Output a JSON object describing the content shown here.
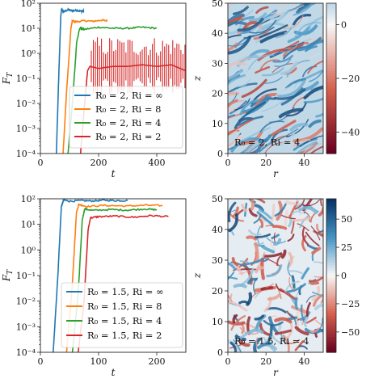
{
  "colors": {
    "blue": "#1f77b4",
    "orange": "#ff7f0e",
    "green": "#2ca02c",
    "red": "#d62728",
    "cmap_neg": "#67001f",
    "cmap_mid": "#f7f7f7",
    "cmap_pos": "#053061"
  },
  "chart_data": [
    {
      "id": "top-left",
      "type": "line",
      "xlabel": "t",
      "ylabel": "F_T",
      "yscale": "log",
      "xlim": [
        0,
        500
      ],
      "ylim": [
        0.0001,
        100
      ],
      "xticks": [
        0,
        200,
        400
      ],
      "xticklabels": [
        "0",
        "200",
        "400"
      ],
      "yticks": [
        0.0001,
        0.001,
        0.01,
        0.1,
        1,
        10,
        100
      ],
      "yticklabels": [
        "10⁻⁴",
        "10⁻³",
        "10⁻²",
        "10⁻¹",
        "10⁰",
        "10¹",
        "10²"
      ],
      "legend_placement": "lower-right",
      "series": [
        {
          "name": "R₀ = 2, Ri = ∞",
          "color": "blue",
          "x": [
            55,
            62,
            70,
            73,
            80,
            95,
            110,
            125,
            140,
            150
          ],
          "y": [
            0.0001,
            0.05,
            30,
            60,
            45,
            55,
            50,
            52,
            48,
            50
          ]
        },
        {
          "name": "R₀ = 2, Ri = 8",
          "color": "orange",
          "x": [
            78,
            90,
            105,
            110,
            120,
            150,
            180,
            210,
            230
          ],
          "y": [
            0.0001,
            0.03,
            10,
            20,
            18,
            20,
            19,
            21,
            20
          ]
        },
        {
          "name": "R₀ = 2, Ri = 4",
          "color": "green",
          "x": [
            95,
            110,
            125,
            135,
            150,
            200,
            250,
            300,
            350,
            400
          ],
          "y": [
            0.0001,
            0.01,
            3,
            10,
            9,
            11,
            10,
            10,
            11,
            10
          ]
        },
        {
          "name": "R₀ = 2, Ri = 2",
          "color": "red",
          "x": [
            138,
            150,
            162,
            170,
            200,
            250,
            300,
            350,
            400,
            450,
            500
          ],
          "y": [
            0.0001,
            0.005,
            0.2,
            0.3,
            0.25,
            0.3,
            0.3,
            0.35,
            0.3,
            0.35,
            0.2
          ]
        }
      ]
    },
    {
      "id": "top-right",
      "type": "heatmap",
      "xlabel": "r",
      "ylabel": "z",
      "xlim": [
        0,
        50
      ],
      "ylim": [
        0,
        50
      ],
      "xticks": [
        0,
        20,
        40
      ],
      "xticklabels": [
        "0",
        "20",
        "40"
      ],
      "yticks": [
        0,
        10,
        20,
        30,
        40,
        50
      ],
      "yticklabels": [
        "0",
        "10",
        "20",
        "30",
        "40",
        "50"
      ],
      "annotation": "R₀ = 2, Ri = 4",
      "colorbar": {
        "min": -48,
        "max": 8,
        "ticks": [
          0,
          -20,
          -40
        ],
        "ticklabels": [
          "0",
          "−20",
          "−40"
        ]
      }
    },
    {
      "id": "bottom-left",
      "type": "line",
      "xlabel": "t",
      "ylabel": "F_T",
      "yscale": "log",
      "xlim": [
        0,
        250
      ],
      "ylim": [
        0.0001,
        100
      ],
      "xticks": [
        0,
        100,
        200
      ],
      "xticklabels": [
        "0",
        "100",
        "200"
      ],
      "yticks": [
        0.0001,
        0.001,
        0.01,
        0.1,
        1,
        10,
        100
      ],
      "yticklabels": [
        "10⁻⁴",
        "10⁻³",
        "10⁻²",
        "10⁻¹",
        "10⁰",
        "10¹",
        "10²"
      ],
      "legend_placement": "lower-right",
      "series": [
        {
          "name": "R₀ = 1.5, Ri = ∞",
          "color": "blue",
          "x": [
            22,
            30,
            36,
            40,
            50,
            70,
            90,
            110,
            130,
            150
          ],
          "y": [
            0.0001,
            0.1,
            50,
            90,
            80,
            85,
            82,
            88,
            84,
            85
          ]
        },
        {
          "name": "R₀ = 1.5, Ri = 8",
          "color": "orange",
          "x": [
            45,
            55,
            62,
            66,
            80,
            110,
            150,
            180,
            210
          ],
          "y": [
            0.0001,
            0.05,
            30,
            60,
            50,
            55,
            52,
            56,
            54
          ]
        },
        {
          "name": "R₀ = 1.5, Ri = 4",
          "color": "green",
          "x": [
            55,
            65,
            72,
            76,
            90,
            120,
            150,
            180,
            200
          ],
          "y": [
            0.0001,
            0.02,
            15,
            40,
            35,
            38,
            36,
            40,
            37
          ]
        },
        {
          "name": "R₀ = 1.5, Ri = 2",
          "color": "red",
          "x": [
            65,
            75,
            82,
            86,
            100,
            130,
            160,
            190,
            220
          ],
          "y": [
            0.0001,
            0.01,
            6,
            18,
            20,
            21,
            19,
            22,
            20
          ]
        }
      ]
    },
    {
      "id": "bottom-right",
      "type": "heatmap",
      "xlabel": "r",
      "ylabel": "z",
      "xlim": [
        0,
        50
      ],
      "ylim": [
        0,
        50
      ],
      "xticks": [
        0,
        20,
        40
      ],
      "xticklabels": [
        "0",
        "20",
        "40"
      ],
      "yticks": [
        0,
        10,
        20,
        30,
        40,
        50
      ],
      "yticklabels": [
        "0",
        "10",
        "20",
        "30",
        "40",
        "50"
      ],
      "annotation": "R₀ = 1.5, Ri = 4",
      "colorbar": {
        "min": -68,
        "max": 68,
        "ticks": [
          50,
          25,
          0,
          -25,
          -50
        ],
        "ticklabels": [
          "50",
          "25",
          "0",
          "−25",
          "−50"
        ]
      }
    }
  ]
}
